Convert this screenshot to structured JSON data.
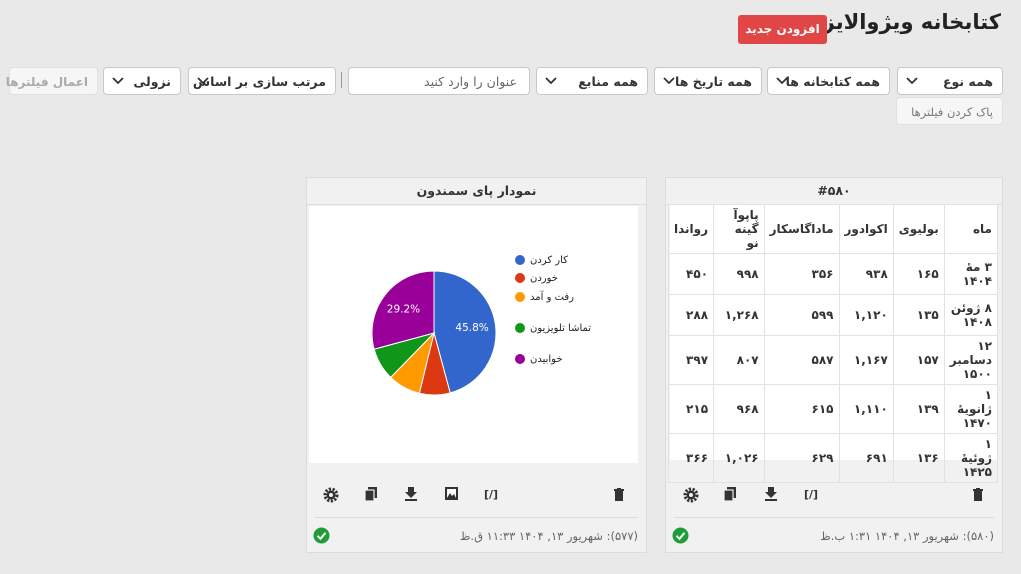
{
  "header": {
    "title": "کتابخانه ویژوالایزر",
    "add_button": "افزودن جدید"
  },
  "filters": {
    "type": "همه نوع",
    "library": "همه کتابخانه ها",
    "date": "همه تاریخ ها",
    "source": "همه منابع",
    "title_placeholder": "عنوان را وارد کنید",
    "sort_by": "مرتب سازی بر اساس",
    "order": "نزولی",
    "apply": "اعمال فیلترها",
    "clear": "پاک کردن فیلترها"
  },
  "table_card": {
    "title": "#۵۸۰",
    "columns": [
      "ماه",
      "بولیوی",
      "اکوادور",
      "ماداگاسکار",
      "پاپوآ گینه نو",
      "رواندا"
    ],
    "rows": [
      [
        "۳ مهٔ ۱۴۰۴",
        "۱۶۵",
        "۹۳۸",
        "۳۵۶",
        "۹۹۸",
        "۴۵۰"
      ],
      [
        "۸ ژوئن ۱۴۰۸",
        "۱۳۵",
        "۱,۱۲۰",
        "۵۹۹",
        "۱,۲۶۸",
        "۲۸۸"
      ],
      [
        "۱۲ دسامبر ۱۵۰۰",
        "۱۵۷",
        "۱,۱۶۷",
        "۵۸۷",
        "۸۰۷",
        "۳۹۷"
      ],
      [
        "۱ ژانویهٔ ۱۴۷۰",
        "۱۳۹",
        "۱,۱۱۰",
        "۶۱۵",
        "۹۶۸",
        "۲۱۵"
      ],
      [
        "۱ ژوئیهٔ ۱۴۲۵",
        "۱۳۶",
        "۶۹۱",
        "۶۲۹",
        "۱,۰۲۶",
        "۳۶۶"
      ]
    ],
    "footer": "(۵۸۰): شهریور ۱۳, ۱۴۰۴ ۱:۳۱ ب.ظ"
  },
  "pie_card": {
    "title": "نمودار پای سمندون",
    "chart": {
      "type": "pie",
      "categories": [
        "کار کردن",
        "خوردن",
        "رفت و آمد",
        "تماشا تلویزیون",
        "خوابیدن"
      ],
      "values": [
        45.8,
        8,
        8.5,
        8.5,
        29.2
      ],
      "value_labels": [
        "45.8%",
        null,
        null,
        null,
        "29.2%"
      ],
      "colors": [
        "#3366cc",
        "#dc3912",
        "#ff9900",
        "#109618",
        "#990099"
      ]
    },
    "footer": "(۵۷۷): شهریور ۱۳, ۱۴۰۴ ۱۱:۳۳ ق.ظ"
  },
  "toolbar": {
    "code_icon": "[/]"
  }
}
